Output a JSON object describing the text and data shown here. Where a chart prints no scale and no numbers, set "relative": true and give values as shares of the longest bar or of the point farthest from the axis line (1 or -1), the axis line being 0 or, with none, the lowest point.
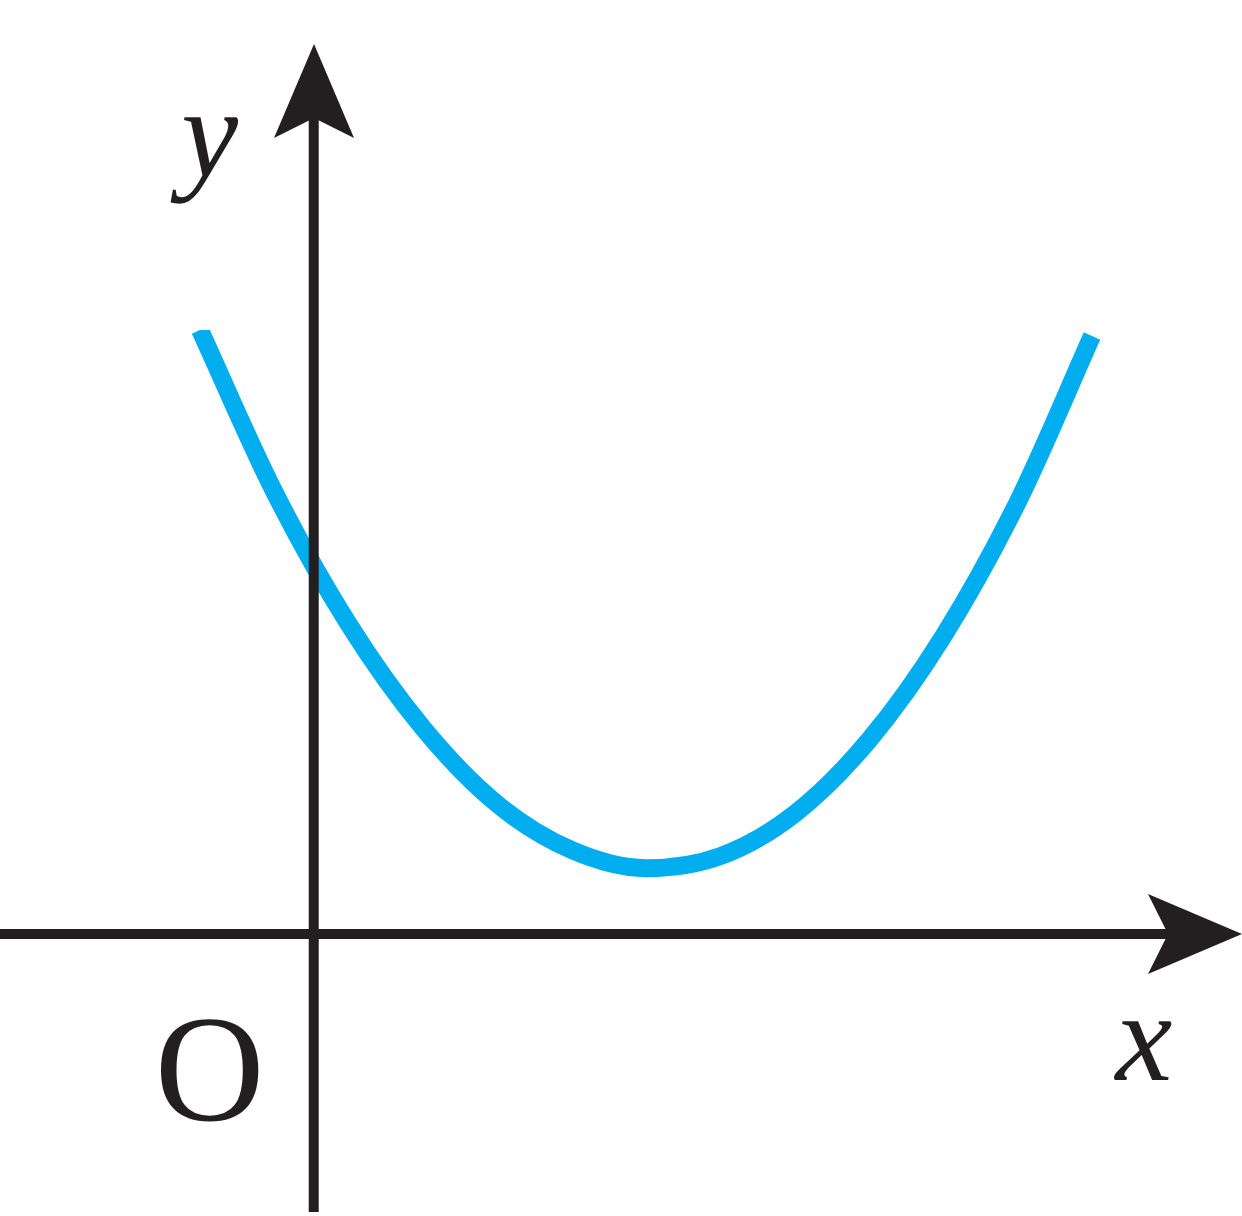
{
  "chart_data": {
    "type": "line",
    "relative": true,
    "xlabel": "x",
    "ylabel": "y",
    "annotations": [
      "O"
    ],
    "categories": [
      null,
      null,
      null,
      null,
      null,
      null,
      null,
      null,
      null,
      null,
      null,
      null,
      null
    ],
    "series": [
      {
        "color": "#00aeef",
        "values": [
          1,
          0.732,
          0.513,
          0.341,
          0.215,
          0.139,
          0.109,
          0.129,
          0.199,
          0.321,
          0.493,
          0.715,
          0.99
        ]
      }
    ]
  }
}
